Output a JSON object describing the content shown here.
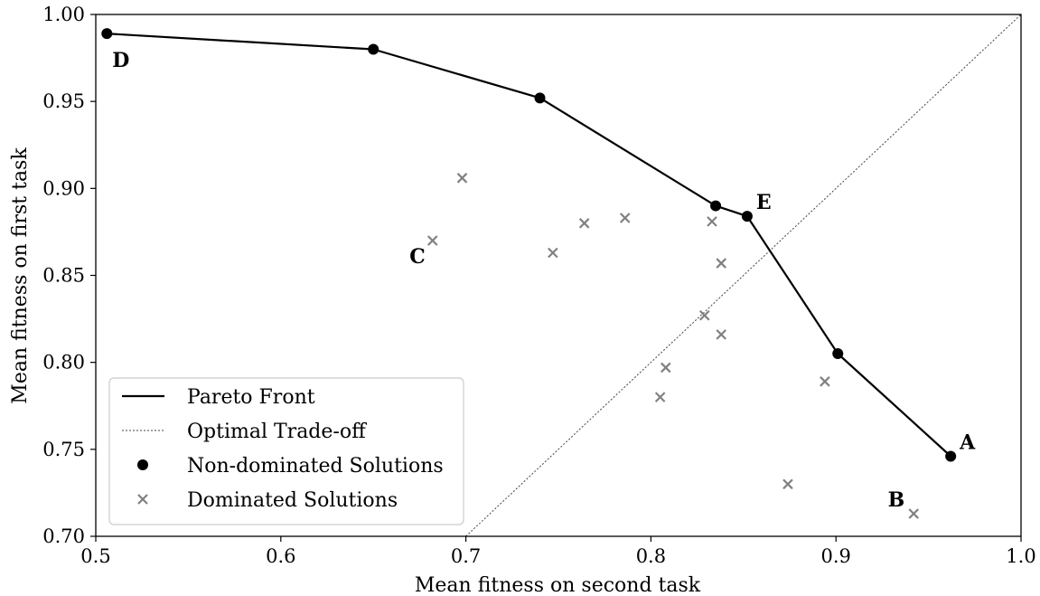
{
  "chart_data": {
    "type": "scatter",
    "xlabel": "Mean fitness on second task",
    "ylabel": "Mean fitness on first task",
    "xlim": [
      0.5,
      1.0
    ],
    "ylim": [
      0.7,
      1.0
    ],
    "xticks": [
      "0.5",
      "0.6",
      "0.7",
      "0.8",
      "0.9",
      "1.0"
    ],
    "xtick_values": [
      0.5,
      0.6,
      0.7,
      0.8,
      0.9,
      1.0
    ],
    "yticks": [
      "0.70",
      "0.75",
      "0.80",
      "0.85",
      "0.90",
      "0.95",
      "1.00"
    ],
    "ytick_values": [
      0.7,
      0.75,
      0.8,
      0.85,
      0.9,
      0.95,
      1.0
    ],
    "grid": false,
    "legend_position": "bottom-left",
    "legend": [
      {
        "label": "Pareto Front",
        "marker": "solid-line"
      },
      {
        "label": "Optimal Trade-off",
        "marker": "dotted-line"
      },
      {
        "label": "Non-dominated Solutions",
        "marker": "filled-circle"
      },
      {
        "label": "Dominated Solutions",
        "marker": "x-mark"
      }
    ],
    "colors": {
      "pareto_front": "#000000",
      "non_dominated": "#000000",
      "dominated": "#808080",
      "optimal_tradeoff": "#444444"
    },
    "series": [
      {
        "name": "Pareto Front",
        "type": "line",
        "points": [
          {
            "x": 0.506,
            "y": 0.989
          },
          {
            "x": 0.65,
            "y": 0.98
          },
          {
            "x": 0.74,
            "y": 0.952
          },
          {
            "x": 0.835,
            "y": 0.89
          },
          {
            "x": 0.852,
            "y": 0.884
          },
          {
            "x": 0.901,
            "y": 0.805
          },
          {
            "x": 0.962,
            "y": 0.746
          }
        ]
      },
      {
        "name": "Optimal Trade-off",
        "type": "line",
        "points": [
          {
            "x": 0.7,
            "y": 0.7
          },
          {
            "x": 1.0,
            "y": 1.0
          }
        ]
      },
      {
        "name": "Non-dominated Solutions",
        "type": "scatter",
        "points": [
          {
            "x": 0.506,
            "y": 0.989
          },
          {
            "x": 0.65,
            "y": 0.98
          },
          {
            "x": 0.74,
            "y": 0.952
          },
          {
            "x": 0.835,
            "y": 0.89
          },
          {
            "x": 0.852,
            "y": 0.884
          },
          {
            "x": 0.901,
            "y": 0.805
          },
          {
            "x": 0.962,
            "y": 0.746
          }
        ]
      },
      {
        "name": "Dominated Solutions",
        "type": "scatter",
        "points": [
          {
            "x": 0.698,
            "y": 0.906
          },
          {
            "x": 0.682,
            "y": 0.87
          },
          {
            "x": 0.747,
            "y": 0.863
          },
          {
            "x": 0.764,
            "y": 0.88
          },
          {
            "x": 0.786,
            "y": 0.883
          },
          {
            "x": 0.833,
            "y": 0.881
          },
          {
            "x": 0.838,
            "y": 0.857
          },
          {
            "x": 0.829,
            "y": 0.827
          },
          {
            "x": 0.838,
            "y": 0.816
          },
          {
            "x": 0.808,
            "y": 0.797
          },
          {
            "x": 0.805,
            "y": 0.78
          },
          {
            "x": 0.894,
            "y": 0.789
          },
          {
            "x": 0.874,
            "y": 0.73
          },
          {
            "x": 0.942,
            "y": 0.713
          }
        ]
      }
    ],
    "annotations": [
      {
        "text": "A",
        "x": 0.962,
        "y": 0.746,
        "anchor": "upper-right"
      },
      {
        "text": "B",
        "x": 0.942,
        "y": 0.713,
        "anchor": "upper-left"
      },
      {
        "text": "C",
        "x": 0.682,
        "y": 0.87,
        "anchor": "lower-left"
      },
      {
        "text": "D",
        "x": 0.506,
        "y": 0.989,
        "anchor": "lower-right"
      },
      {
        "text": "E",
        "x": 0.852,
        "y": 0.884,
        "anchor": "upper-right"
      }
    ]
  }
}
